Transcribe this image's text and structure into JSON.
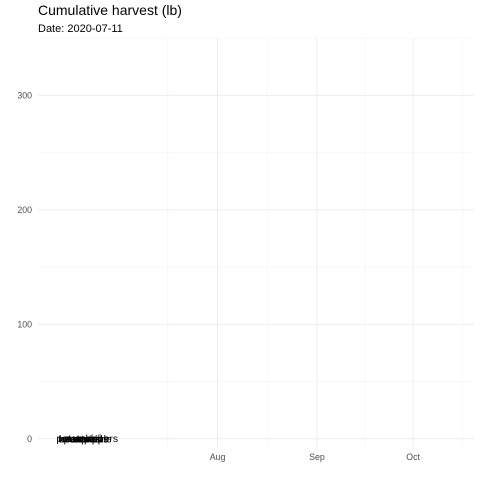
{
  "chart_data": {
    "type": "line",
    "title": "Cumulative harvest (lb)",
    "subtitle": "Date: 2020-07-11",
    "xlabel": "",
    "ylabel": "",
    "x_axis": {
      "type": "date",
      "range": [
        "2020-06-06",
        "2020-10-20"
      ],
      "tick_labels": [
        "Aug",
        "Sep",
        "Oct"
      ],
      "tick_dates": [
        "2020-08-01",
        "2020-09-01",
        "2020-10-01"
      ]
    },
    "y_axis": {
      "range": [
        -8,
        350
      ],
      "ticks": [
        0,
        100,
        200,
        300
      ]
    },
    "grid": true,
    "current_date": "2020-07-11",
    "point_labels": [
      "beans",
      "potatoes",
      "tomatoes",
      "zucchini",
      "pumpkins",
      "squash",
      "cucumbers",
      "apple"
    ],
    "points": [
      {
        "x": "2020-06-17",
        "y": 0.5
      },
      {
        "x": "2020-06-18",
        "y": 0.6
      },
      {
        "x": "2020-06-19",
        "y": 0.4
      },
      {
        "x": "2020-06-20",
        "y": 0.7
      },
      {
        "x": "2020-06-21",
        "y": 0.3
      },
      {
        "x": "2020-06-22",
        "y": 0.5
      },
      {
        "x": "2020-06-23",
        "y": 0.6
      },
      {
        "x": "2020-06-25",
        "y": 0.5
      }
    ]
  }
}
